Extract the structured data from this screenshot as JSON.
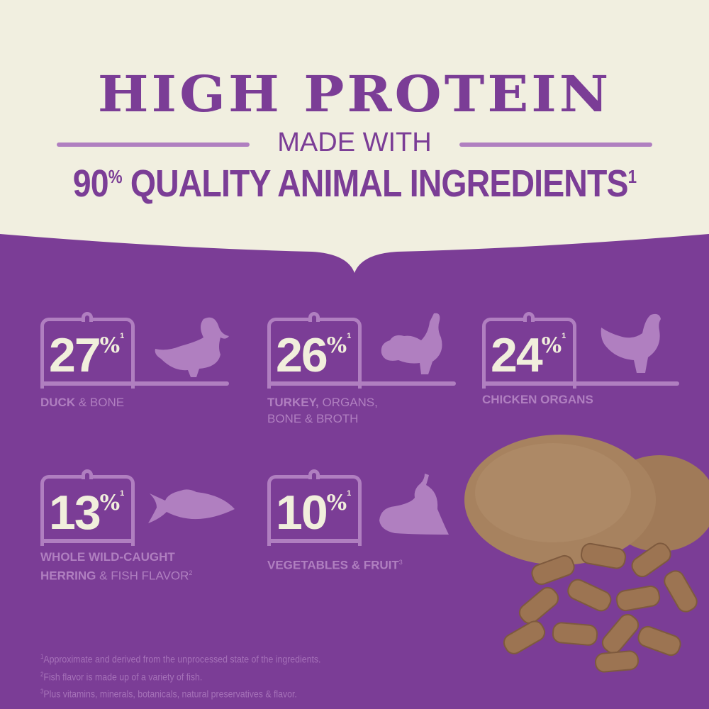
{
  "header": {
    "title": "HIGH PROTEIN",
    "subtitle": "MADE WITH",
    "claim": "90% QUALITY ANIMAL INGREDIENTS",
    "claim_pct": "90",
    "claim_pct_sym": "%",
    "claim_text": "QUALITY ANIMAL INGREDIENTS",
    "claim_fn": "1"
  },
  "ingredients": [
    {
      "pct": "27",
      "sym": "%",
      "fn": "1",
      "bold": "DUCK",
      "rest": "& BONE",
      "icon": "duck-icon"
    },
    {
      "pct": "26",
      "sym": "%",
      "fn": "1",
      "bold": "TURKEY,",
      "rest": "ORGANS, BONE & BROTH",
      "icon": "turkey-icon"
    },
    {
      "pct": "24",
      "sym": "%",
      "fn": "1",
      "bold": "CHICKEN ORGANS",
      "rest": "",
      "icon": "chicken-icon"
    },
    {
      "pct": "13",
      "sym": "%",
      "fn": "1",
      "bold": "WHOLE WILD-CAUGHT HERRING",
      "rest": "& FISH FLAVOR",
      "fn2": "2",
      "icon": "fish-icon"
    },
    {
      "pct": "10",
      "sym": "%",
      "fn": "1",
      "bold": "VEGETABLES & FRUIT",
      "rest": "",
      "fn2": "3",
      "icon": "vegetables-fruit-icon"
    }
  ],
  "footnotes": [
    {
      "n": "1",
      "text": "Approximate and derived from the unprocessed state of the ingredients."
    },
    {
      "n": "2",
      "text": "Fish flavor is made up of a variety of fish."
    },
    {
      "n": "3",
      "text": "Plus vitamins, minerals, botanicals, natural preservatives & flavor."
    }
  ],
  "colors": {
    "cream": "#f1efe0",
    "purple": "#7b3d96",
    "lilac": "#b07fc0",
    "number": "#f1efdc"
  }
}
